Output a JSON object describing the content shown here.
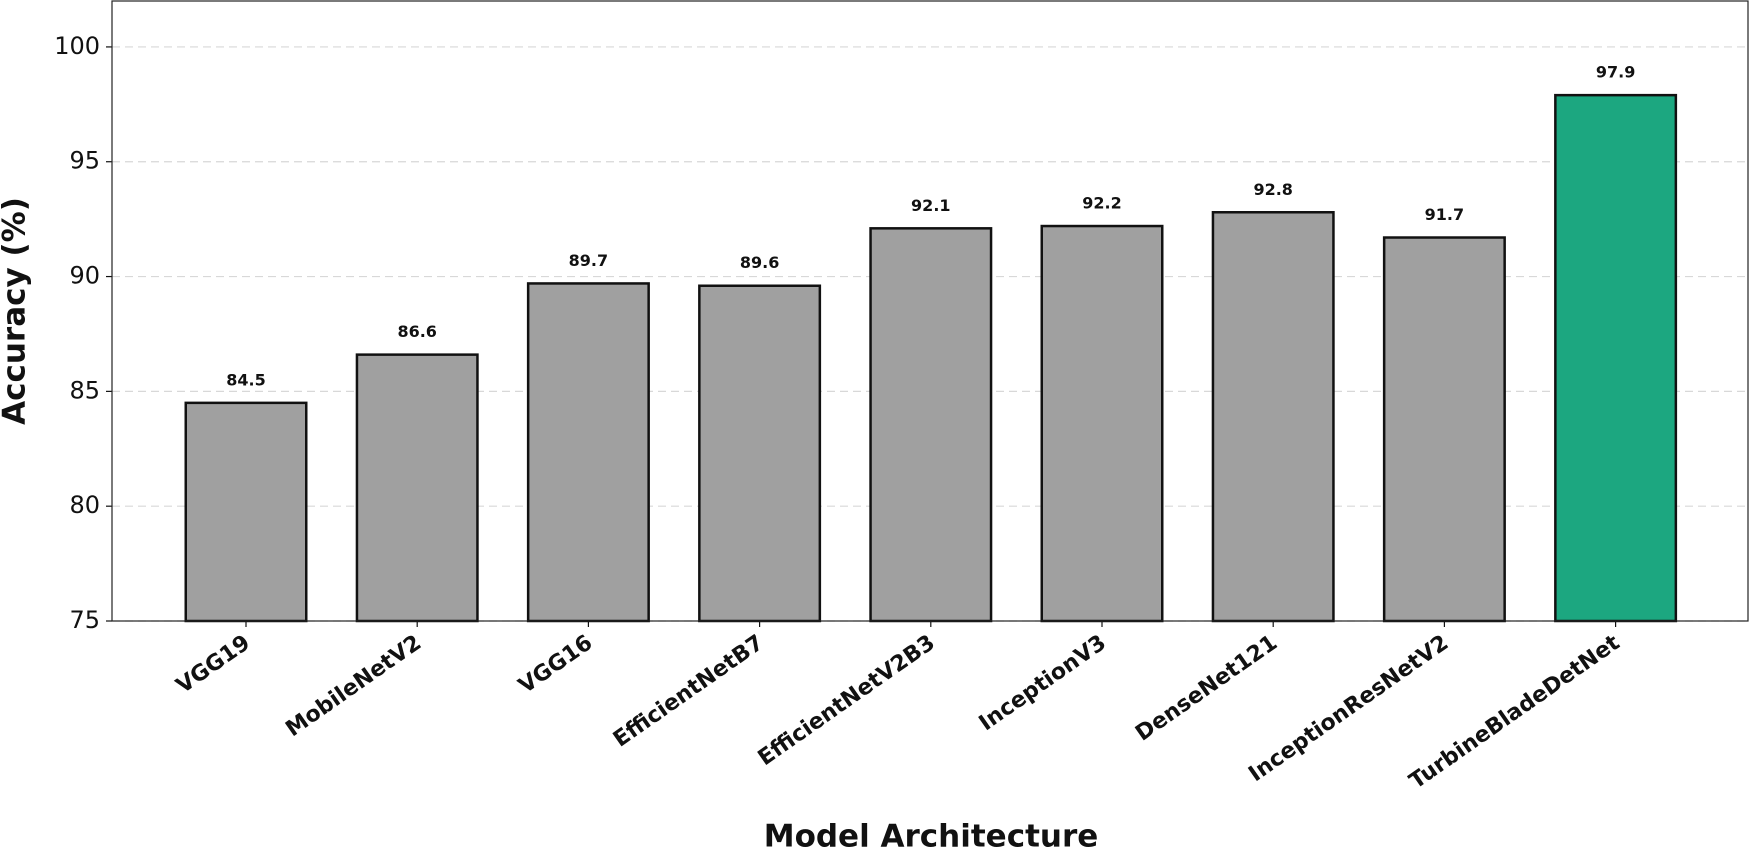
{
  "chart_data": {
    "type": "bar",
    "xlabel": "Model Architecture",
    "ylabel": "Accuracy (%)",
    "categories": [
      "VGG19",
      "MobileNetV2",
      "VGG16",
      "EfficientNetB7",
      "EfficientNetV2B3",
      "InceptionV3",
      "DenseNet121",
      "InceptionResNetV2",
      "TurbineBladeDetNet"
    ],
    "values": [
      84.5,
      86.6,
      89.7,
      89.6,
      92.1,
      92.2,
      92.8,
      91.7,
      97.9
    ],
    "colors": [
      "#a0a0a0",
      "#a0a0a0",
      "#a0a0a0",
      "#a0a0a0",
      "#a0a0a0",
      "#a0a0a0",
      "#a0a0a0",
      "#a0a0a0",
      "#1ca780"
    ],
    "ylim": [
      75,
      102
    ],
    "yticks": [
      75,
      80,
      85,
      90,
      95,
      100
    ],
    "grid": true
  }
}
